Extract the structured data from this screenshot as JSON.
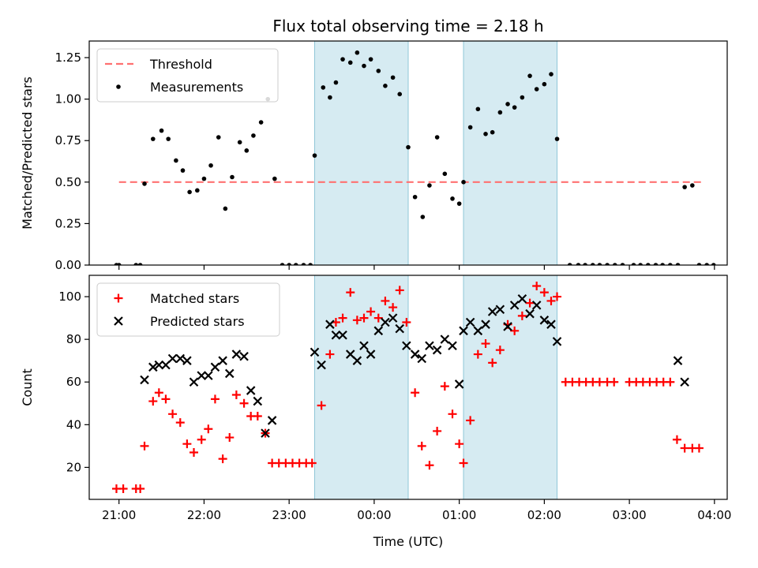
{
  "chart_data": [
    {
      "type": "scatter",
      "title": "Flux total observing time = 2.18 h",
      "xlabel": "",
      "ylabel": "Matched/Predicted stars",
      "x_unit": "hours since 21:00 UTC",
      "xlim": [
        -0.35,
        7.15
      ],
      "ylim": [
        0,
        1.35
      ],
      "y_ticks": [
        0.0,
        0.25,
        0.5,
        0.75,
        1.0,
        1.25
      ],
      "y_tick_labels": [
        "0.00",
        "0.25",
        "0.50",
        "0.75",
        "1.00",
        "1.25"
      ],
      "shaded_regions_hours": [
        [
          2.3,
          3.4
        ],
        [
          4.05,
          5.15
        ]
      ],
      "legend": {
        "placement": "top-left",
        "entries": [
          "Threshold",
          "Measurements"
        ]
      },
      "series": [
        {
          "name": "Threshold",
          "style": "dashed-line",
          "color": "#ff7070",
          "x": [
            0.0,
            6.85
          ],
          "y": [
            0.5,
            0.5
          ]
        },
        {
          "name": "Measurements",
          "style": "dot",
          "color": "#000000",
          "x": [
            -0.03,
            0.0,
            0.2,
            0.25,
            0.3,
            0.4,
            0.5,
            0.58,
            0.67,
            0.75,
            0.83,
            0.92,
            1.0,
            1.08,
            1.17,
            1.25,
            1.33,
            1.42,
            1.5,
            1.58,
            1.67,
            1.75,
            1.83,
            1.92,
            2.0,
            2.08,
            2.17,
            2.25,
            2.3,
            2.4,
            2.48,
            2.55,
            2.63,
            2.72,
            2.8,
            2.88,
            2.96,
            3.05,
            3.13,
            3.22,
            3.3,
            3.4,
            3.48,
            3.57,
            3.65,
            3.74,
            3.83,
            3.92,
            4.0,
            4.05,
            4.13,
            4.22,
            4.31,
            4.39,
            4.48,
            4.57,
            4.65,
            4.74,
            4.83,
            4.91,
            5.0,
            5.08,
            5.15,
            5.3,
            5.4,
            5.48,
            5.57,
            5.65,
            5.74,
            5.83,
            5.92,
            6.05,
            6.13,
            6.22,
            6.31,
            6.39,
            6.48,
            6.57,
            6.65,
            6.74,
            6.82,
            6.91,
            6.99
          ],
          "y": [
            0.0,
            0.0,
            0.0,
            0.0,
            0.49,
            0.76,
            0.81,
            0.76,
            0.63,
            0.57,
            0.44,
            0.45,
            0.52,
            0.6,
            0.77,
            0.34,
            0.53,
            0.74,
            0.69,
            0.78,
            0.86,
            1.0,
            0.52,
            0.0,
            0.0,
            0.0,
            0.0,
            0.0,
            0.66,
            1.07,
            1.01,
            1.1,
            1.24,
            1.22,
            1.28,
            1.2,
            1.24,
            1.17,
            1.08,
            1.13,
            1.03,
            0.71,
            0.41,
            0.29,
            0.48,
            0.77,
            0.55,
            0.4,
            0.37,
            0.5,
            0.83,
            0.94,
            0.79,
            0.8,
            0.92,
            0.97,
            0.95,
            1.01,
            1.14,
            1.06,
            1.09,
            1.15,
            0.76,
            0.0,
            0.0,
            0.0,
            0.0,
            0.0,
            0.0,
            0.0,
            0.0,
            0.0,
            0.0,
            0.0,
            0.0,
            0.0,
            0.0,
            0.0,
            0.47,
            0.48,
            0.0,
            0.0,
            0.0
          ]
        }
      ]
    },
    {
      "type": "scatter",
      "title": "",
      "xlabel": "Time (UTC)",
      "ylabel": "Count",
      "x_unit": "hours since 21:00 UTC",
      "xlim": [
        -0.35,
        7.15
      ],
      "ylim": [
        5,
        110
      ],
      "x_ticks": [
        0,
        1,
        2,
        3,
        4,
        5,
        6,
        7
      ],
      "x_tick_labels": [
        "21:00",
        "22:00",
        "23:00",
        "00:00",
        "01:00",
        "02:00",
        "03:00",
        "04:00"
      ],
      "y_ticks": [
        20,
        40,
        60,
        80,
        100
      ],
      "y_tick_labels": [
        "20",
        "40",
        "60",
        "80",
        "100"
      ],
      "shaded_regions_hours": [
        [
          2.3,
          3.4
        ],
        [
          4.05,
          5.15
        ]
      ],
      "legend": {
        "placement": "top-left",
        "entries": [
          "Matched stars",
          "Predicted stars"
        ]
      },
      "series": [
        {
          "name": "Matched stars",
          "style": "plus",
          "color": "#ff0000",
          "x": [
            -0.03,
            0.05,
            0.2,
            0.25,
            0.3,
            0.4,
            0.47,
            0.55,
            0.63,
            0.72,
            0.8,
            0.88,
            0.97,
            1.05,
            1.13,
            1.22,
            1.3,
            1.38,
            1.47,
            1.55,
            1.63,
            1.72,
            1.8,
            1.88,
            1.96,
            2.04,
            2.12,
            2.2,
            2.27,
            2.38,
            2.48,
            2.55,
            2.63,
            2.72,
            2.8,
            2.88,
            2.96,
            3.05,
            3.13,
            3.22,
            3.3,
            3.38,
            3.48,
            3.56,
            3.65,
            3.74,
            3.83,
            3.92,
            4.0,
            4.05,
            4.13,
            4.22,
            4.31,
            4.39,
            4.48,
            4.57,
            4.65,
            4.74,
            4.83,
            4.91,
            5.0,
            5.08,
            5.15,
            5.25,
            5.33,
            5.41,
            5.49,
            5.57,
            5.65,
            5.74,
            5.82,
            6.0,
            6.08,
            6.16,
            6.24,
            6.32,
            6.4,
            6.48,
            6.56,
            6.65,
            6.74,
            6.82
          ],
          "y": [
            10,
            10,
            10,
            10,
            30,
            51,
            55,
            52,
            45,
            41,
            31,
            27,
            33,
            38,
            52,
            24,
            34,
            54,
            50,
            44,
            44,
            36,
            22,
            22,
            22,
            22,
            22,
            22,
            22,
            49,
            73,
            88,
            90,
            102,
            89,
            90,
            93,
            90,
            98,
            95,
            103,
            88,
            55,
            30,
            21,
            37,
            58,
            45,
            31,
            22,
            42,
            73,
            78,
            69,
            75,
            87,
            84,
            91,
            97,
            105,
            102,
            98,
            100,
            60,
            60,
            60,
            60,
            60,
            60,
            60,
            60,
            60,
            60,
            60,
            60,
            60,
            60,
            60,
            33,
            29,
            29,
            29
          ]
        },
        {
          "name": "Predicted stars",
          "style": "x",
          "color": "#000000",
          "x": [
            0.3,
            0.4,
            0.47,
            0.55,
            0.63,
            0.72,
            0.8,
            0.88,
            0.97,
            1.05,
            1.13,
            1.22,
            1.3,
            1.38,
            1.47,
            1.55,
            1.63,
            1.72,
            1.8,
            2.3,
            2.38,
            2.48,
            2.55,
            2.63,
            2.72,
            2.8,
            2.88,
            2.96,
            3.05,
            3.13,
            3.22,
            3.3,
            3.38,
            3.48,
            3.56,
            3.65,
            3.74,
            3.83,
            3.92,
            4.0,
            4.05,
            4.13,
            4.22,
            4.31,
            4.39,
            4.48,
            4.57,
            4.65,
            4.74,
            4.83,
            4.91,
            5.0,
            5.08,
            5.15,
            6.57,
            6.65
          ],
          "y": [
            61,
            67,
            68,
            68,
            71,
            71,
            70,
            60,
            63,
            63,
            67,
            70,
            64,
            73,
            72,
            56,
            51,
            36,
            42,
            74,
            68,
            87,
            82,
            82,
            73,
            70,
            77,
            73,
            84,
            88,
            90,
            85,
            77,
            73,
            71,
            77,
            75,
            80,
            77,
            59,
            84,
            88,
            84,
            87,
            93,
            94,
            86,
            96,
            99,
            92,
            96,
            89,
            87,
            79,
            70,
            60
          ]
        }
      ]
    }
  ]
}
